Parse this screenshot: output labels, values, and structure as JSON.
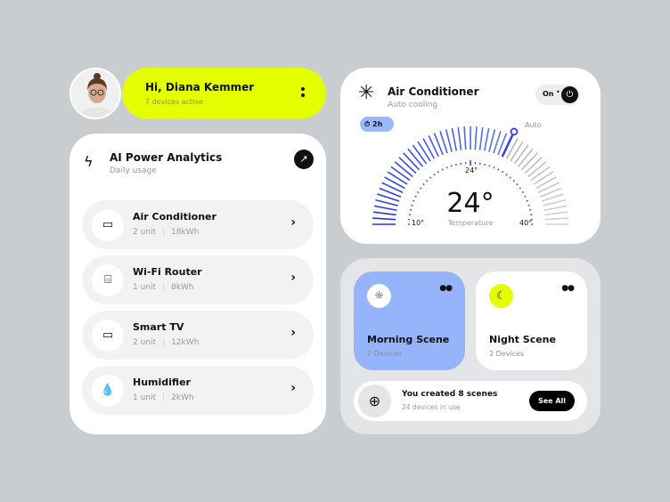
{
  "user": {
    "greeting": "Hi, Diana Kemmer",
    "status": "7 devices active"
  },
  "analytics": {
    "title": "AI Power Analytics",
    "subtitle": "Daily usage",
    "devices": [
      {
        "name": "Air Conditioner",
        "units": "2 unit",
        "usage": "18kWh",
        "icon": "air-conditioner-icon"
      },
      {
        "name": "Wi-Fi Router",
        "units": "1 unit",
        "usage": "8kWh",
        "icon": "router-icon"
      },
      {
        "name": "Smart TV",
        "units": "2 unit",
        "usage": "12kWh",
        "icon": "tv-icon"
      },
      {
        "name": "Humidifier",
        "units": "1 unit",
        "usage": "2kWh",
        "icon": "humidifier-icon"
      }
    ]
  },
  "ac": {
    "title": "Air Conditioner",
    "subtitle": "Auto cooling",
    "power": "On",
    "timer": "2h",
    "mode": "Auto",
    "temp": "24°",
    "temp_label": "Temperature",
    "mark": "24°",
    "min_label": "10°",
    "max_label": "40°",
    "min": 10,
    "max": 40,
    "value": 24,
    "setting_fraction": 0.64,
    "accent": "#3b3bf5",
    "timer_bg": "#9bb8ff"
  },
  "scenes": [
    {
      "name": "Morning Scene",
      "devices": "7 Devices",
      "icon": "sun-icon",
      "bg": "#95b4fb"
    },
    {
      "name": "Night Scene",
      "devices": "2 Devices",
      "icon": "moon-icon",
      "bg": "#ffffff"
    }
  ],
  "summary": {
    "title": "You created 8 scenes",
    "subtitle": "24 devices in use",
    "button": "See All"
  },
  "colors": {
    "lime": "#e4ff00",
    "background": "#c9cdcf"
  }
}
